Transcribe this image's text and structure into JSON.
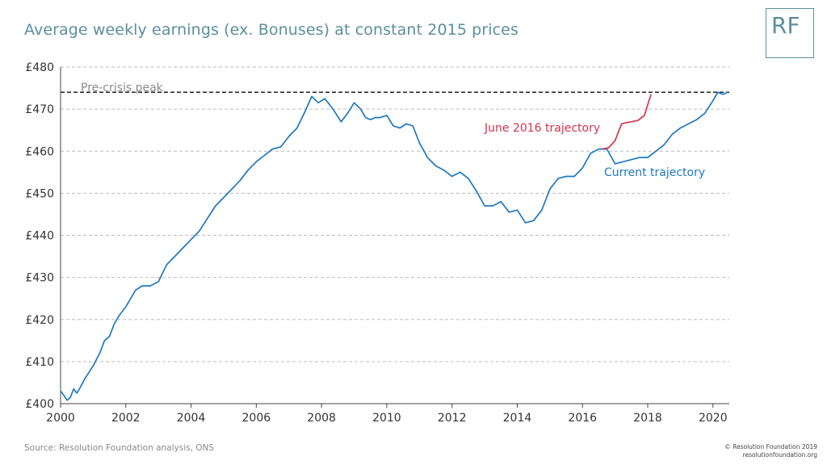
{
  "title": "Average weekly earnings (ex. Bonuses) at constant 2015 prices",
  "logo": "RF",
  "source": "Source: Resolution Foundation analysis, ONS",
  "copyright": [
    "© Resolution Foundation 2019",
    "resolutionfoundation.org"
  ],
  "colors": {
    "current": "#1f78c1",
    "june2016": "#d2344d",
    "peak": "#222222",
    "grid": "#bdbdbd",
    "peak_label": "#8c8c8c",
    "accent": "#5b8f9e"
  },
  "chart_data": {
    "type": "line",
    "title": "Average weekly earnings (ex. Bonuses) at constant 2015 prices",
    "xlabel": "",
    "ylabel": "",
    "xlim": [
      2000,
      2020.5
    ],
    "ylim": [
      400,
      480
    ],
    "x_ticks": [
      2000,
      2002,
      2004,
      2006,
      2008,
      2010,
      2012,
      2014,
      2016,
      2018,
      2020
    ],
    "x_tick_labels": [
      "2000",
      "2002",
      "2004",
      "2006",
      "2008",
      "2010",
      "2012",
      "2014",
      "2016",
      "2018",
      "2020"
    ],
    "y_ticks": [
      400,
      410,
      420,
      430,
      440,
      450,
      460,
      470,
      480
    ],
    "y_tick_labels": [
      "£400",
      "£410",
      "£420",
      "£430",
      "£440",
      "£450",
      "£460",
      "£470",
      "£480"
    ],
    "grid": "horizontal dashed",
    "reference_line": {
      "label": "Pre-crisis peak",
      "y": 474
    },
    "series": [
      {
        "name": "Current trajectory",
        "color": "#1f78c1",
        "x": [
          2000.0,
          2000.1,
          2000.2,
          2000.3,
          2000.4,
          2000.5,
          2000.6,
          2000.75,
          2001.0,
          2001.2,
          2001.35,
          2001.5,
          2001.65,
          2001.8,
          2002.0,
          2002.3,
          2002.5,
          2002.75,
          2003.0,
          2003.25,
          2003.5,
          2003.75,
          2004.0,
          2004.25,
          2004.5,
          2004.75,
          2005.0,
          2005.25,
          2005.5,
          2005.75,
          2006.0,
          2006.25,
          2006.5,
          2006.75,
          2007.0,
          2007.25,
          2007.5,
          2007.7,
          2007.9,
          2008.1,
          2008.35,
          2008.6,
          2008.8,
          2009.0,
          2009.2,
          2009.35,
          2009.5,
          2009.65,
          2009.8,
          2010.0,
          2010.2,
          2010.4,
          2010.6,
          2010.8,
          2011.0,
          2011.25,
          2011.5,
          2011.75,
          2012.0,
          2012.25,
          2012.5,
          2012.75,
          2013.0,
          2013.25,
          2013.5,
          2013.75,
          2014.0,
          2014.25,
          2014.5,
          2014.75,
          2015.0,
          2015.25,
          2015.5,
          2015.75,
          2016.0,
          2016.25,
          2016.5,
          2016.75,
          2017.0,
          2017.25,
          2017.5,
          2017.75,
          2018.0,
          2018.25,
          2018.5,
          2018.75,
          2019.0,
          2019.25,
          2019.5,
          2019.75,
          2020.0,
          2020.15,
          2020.3,
          2020.45
        ],
        "values": [
          403,
          402,
          400.8,
          401.5,
          403.5,
          402.5,
          403.8,
          406,
          409,
          412,
          415,
          416,
          419,
          421,
          423,
          427,
          428,
          428,
          429,
          433,
          435,
          437,
          439,
          441,
          444,
          447,
          449,
          451,
          453,
          455.5,
          457.5,
          459,
          460.5,
          461,
          463.5,
          465.5,
          469.5,
          473,
          471.5,
          472.5,
          470,
          467,
          469,
          471.5,
          470,
          468,
          467.5,
          468,
          468,
          468.5,
          466,
          465.5,
          466.5,
          466,
          462,
          458.5,
          456.5,
          455.5,
          454,
          455,
          453.5,
          450.5,
          447,
          447,
          448,
          445.5,
          446,
          443,
          443.5,
          446,
          451,
          453.5,
          454,
          454,
          456,
          459.5,
          460.5,
          460.5,
          457,
          457.5,
          458,
          458.5,
          458.5,
          460,
          461.5,
          464,
          465.5,
          466.5,
          467.5,
          469,
          472,
          474,
          473.5,
          474
        ]
      },
      {
        "name": "June 2016 trajectory",
        "color": "#d2344d",
        "x": [
          2016.6,
          2016.8,
          2017.0,
          2017.2,
          2017.35,
          2017.5,
          2017.7,
          2017.9,
          2018.0,
          2018.1
        ],
        "values": [
          460.5,
          460.8,
          462.5,
          466.5,
          466.8,
          467,
          467.3,
          468.5,
          471,
          473.5
        ]
      }
    ],
    "annotations": [
      {
        "text": "Pre-crisis peak",
        "color": "#8c8c8c"
      },
      {
        "text": "June 2016 trajectory",
        "color": "#d2344d"
      },
      {
        "text": "Current trajectory",
        "color": "#1f78c1"
      }
    ],
    "legend": "inline annotations"
  }
}
